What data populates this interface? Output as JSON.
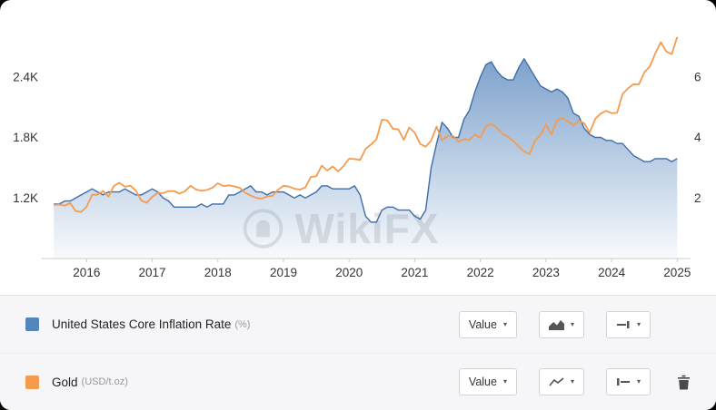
{
  "watermark": {
    "text": "WikiFX"
  },
  "icons": {
    "caret_down": "▾"
  },
  "legend": {
    "rows": [
      {
        "label": "United States Core Inflation Rate",
        "unit": "(%)",
        "value_button": "Value",
        "swatch_color": "#5585bd"
      },
      {
        "label": "Gold",
        "unit": "(USD/t.oz)",
        "value_button": "Value",
        "swatch_color": "#f59b4e"
      }
    ]
  },
  "chart_data": {
    "type": "line",
    "x_start": "2015-07",
    "frequency": "monthly",
    "x_ticks": [
      "2016",
      "2017",
      "2018",
      "2019",
      "2020",
      "2021",
      "2022",
      "2023",
      "2024",
      "2025"
    ],
    "left_axis": {
      "ticks": [
        "1.2K",
        "1.8K",
        "2.4K"
      ],
      "tick_values": [
        1200,
        1800,
        2400
      ],
      "min": 600,
      "max": 3000
    },
    "right_axis": {
      "ticks": [
        "2",
        "4",
        "6"
      ],
      "tick_values": [
        2,
        4,
        6
      ],
      "min": 0,
      "max": 8
    },
    "series": [
      {
        "name": "United States Core Inflation Rate",
        "unit": "%",
        "axis": "right",
        "type": "area",
        "color": "#5585bd",
        "line_color": "#3f6ea6",
        "values": [
          1.8,
          1.8,
          1.9,
          1.9,
          2.0,
          2.1,
          2.2,
          2.3,
          2.2,
          2.1,
          2.2,
          2.2,
          2.2,
          2.3,
          2.2,
          2.1,
          2.1,
          2.2,
          2.3,
          2.2,
          2.0,
          1.9,
          1.7,
          1.7,
          1.7,
          1.7,
          1.7,
          1.8,
          1.7,
          1.8,
          1.8,
          1.8,
          2.1,
          2.1,
          2.2,
          2.3,
          2.4,
          2.2,
          2.2,
          2.1,
          2.2,
          2.2,
          2.2,
          2.1,
          2.0,
          2.1,
          2.0,
          2.1,
          2.2,
          2.4,
          2.4,
          2.3,
          2.3,
          2.3,
          2.3,
          2.4,
          2.1,
          1.4,
          1.2,
          1.2,
          1.6,
          1.7,
          1.7,
          1.6,
          1.6,
          1.6,
          1.4,
          1.3,
          1.6,
          3.0,
          3.8,
          4.5,
          4.3,
          4.0,
          4.0,
          4.6,
          4.9,
          5.5,
          6.0,
          6.4,
          6.5,
          6.2,
          6.0,
          5.9,
          5.9,
          6.3,
          6.6,
          6.3,
          6.0,
          5.7,
          5.6,
          5.5,
          5.6,
          5.5,
          5.3,
          4.8,
          4.7,
          4.3,
          4.1,
          4.0,
          4.0,
          3.9,
          3.9,
          3.8,
          3.8,
          3.6,
          3.4,
          3.3,
          3.2,
          3.2,
          3.3,
          3.3,
          3.3,
          3.2,
          3.3
        ]
      },
      {
        "name": "Gold",
        "unit": "USD/t.oz",
        "axis": "left",
        "type": "line",
        "color": "#f59b4e",
        "line_color": "#f59b4e",
        "values": [
          1130,
          1135,
          1125,
          1150,
          1070,
          1062,
          1112,
          1232,
          1232,
          1270,
          1212,
          1320,
          1351,
          1311,
          1322,
          1272,
          1174,
          1152,
          1212,
          1248,
          1249,
          1268,
          1269,
          1242,
          1268,
          1321,
          1284,
          1271,
          1280,
          1302,
          1345,
          1318,
          1325,
          1315,
          1300,
          1252,
          1224,
          1201,
          1192,
          1215,
          1222,
          1281,
          1321,
          1313,
          1292,
          1283,
          1305,
          1409,
          1414,
          1520,
          1472,
          1512,
          1464,
          1517,
          1589,
          1586,
          1577,
          1686,
          1730,
          1781,
          1976,
          1967,
          1886,
          1879,
          1777,
          1898,
          1848,
          1734,
          1708,
          1768,
          1907,
          1770,
          1814,
          1814,
          1757,
          1783,
          1775,
          1829,
          1797,
          1909,
          1937,
          1897,
          1837,
          1807,
          1766,
          1711,
          1661,
          1634,
          1769,
          1824,
          1928,
          1827,
          1969,
          1990,
          1963,
          1919,
          1965,
          1940,
          1849,
          1984,
          2036,
          2063,
          2040,
          2044,
          2230,
          2286,
          2327,
          2326,
          2446,
          2503,
          2635,
          2744,
          2651,
          2625,
          2795
        ]
      }
    ]
  }
}
